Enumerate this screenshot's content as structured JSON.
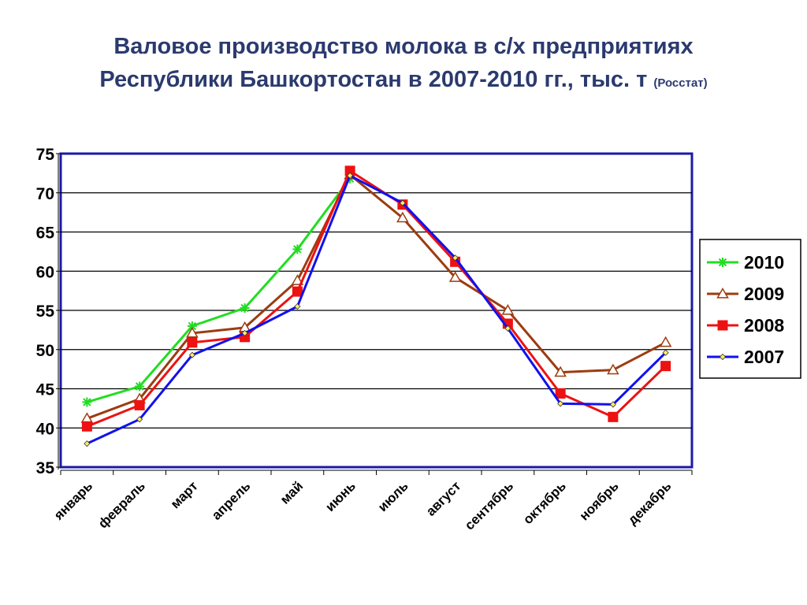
{
  "chart_data": {
    "type": "line",
    "title_line1": "Валовое производство молока в с/х предприятиях",
    "title_line2": "Республики Башкортостан в 2007-2010 гг., тыс. т",
    "source": "(Росстат)",
    "categories": [
      "январь",
      "февраль",
      "март",
      "апрель",
      "май",
      "июнь",
      "июль",
      "август",
      "сентябрь",
      "октябрь",
      "ноябрь",
      "декабрь"
    ],
    "ylim": [
      35,
      75
    ],
    "yticks": [
      35,
      40,
      45,
      50,
      55,
      60,
      65,
      70,
      75
    ],
    "grid": true,
    "legend": "right",
    "series": [
      {
        "name": "2010",
        "color": "#22dd22",
        "marker": "star",
        "values": [
          43.3,
          45.3,
          53.0,
          55.3,
          62.8,
          71.8,
          null,
          null,
          null,
          null,
          null,
          null
        ]
      },
      {
        "name": "2009",
        "color": "#9c3c10",
        "marker": "triangle",
        "values": [
          41.2,
          43.7,
          52.1,
          52.8,
          58.8,
          72.3,
          66.8,
          59.2,
          55.0,
          47.1,
          47.4,
          50.9
        ]
      },
      {
        "name": "2008",
        "color": "#ee1111",
        "marker": "square",
        "values": [
          40.2,
          42.9,
          50.9,
          51.6,
          57.4,
          72.8,
          68.5,
          61.2,
          53.3,
          44.4,
          41.4,
          47.9
        ]
      },
      {
        "name": "2007",
        "color": "#1111ee",
        "marker": "diamond",
        "values": [
          38.0,
          41.1,
          49.3,
          52.1,
          55.5,
          72.2,
          68.7,
          61.7,
          52.7,
          43.1,
          43.0,
          49.6
        ]
      }
    ]
  }
}
